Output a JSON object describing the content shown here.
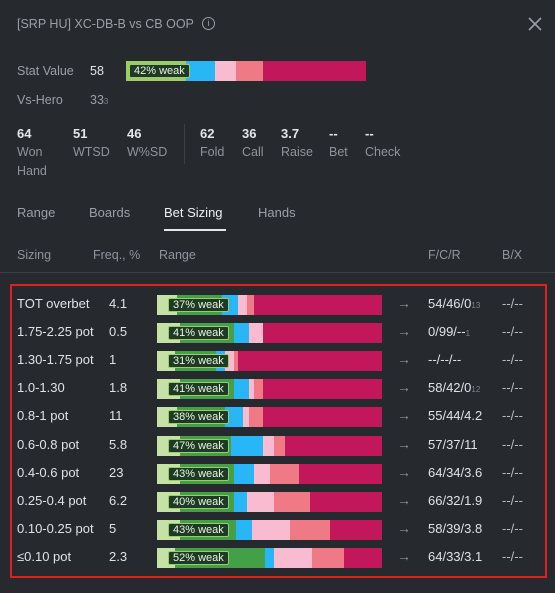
{
  "header": {
    "title": "[SRP HU] XC-DB-B vs CB OOP",
    "info_icon": "info-icon",
    "close_icon": "close-icon"
  },
  "stats": {
    "stat_value_label": "Stat Value",
    "stat_value": "58",
    "stat_weak_label": "42% weak",
    "vs_hero_label": "Vs-Hero",
    "vs_hero_value": "33",
    "vs_hero_sub": "3",
    "stat_bar_segments": [
      {
        "fraction": 0.25,
        "color": "#9ccc65"
      },
      {
        "fraction": 0.12,
        "color": "#29b6f6"
      },
      {
        "fraction": 0.09,
        "color": "#f8bbd0"
      },
      {
        "fraction": 0.11,
        "color": "#ef7a85"
      },
      {
        "fraction": 0.43,
        "color": "#c2185b"
      }
    ]
  },
  "metrics": [
    {
      "num": "64",
      "label": "Won",
      "label2": "Hand"
    },
    {
      "num": "51",
      "label": "WTSD",
      "label2": ""
    },
    {
      "num": "46",
      "label": "W%SD",
      "label2": ""
    },
    {
      "num": "62",
      "label": "Fold",
      "label2": ""
    },
    {
      "num": "36",
      "label": "Call",
      "label2": ""
    },
    {
      "num": "3.7",
      "label": "Raise",
      "label2": ""
    },
    {
      "num": "--",
      "label": "Bet",
      "label2": ""
    },
    {
      "num": "--",
      "label": "Check",
      "label2": ""
    }
  ],
  "tabs": [
    "Range",
    "Boards",
    "Bet Sizing",
    "Hands"
  ],
  "active_tab": "Bet Sizing",
  "columns": {
    "sizing": "Sizing",
    "freq": "Freq., %",
    "range": "Range",
    "fcr": "F/C/R",
    "bx": "B/X"
  },
  "colors": {
    "very_weak": "#c5e1a5",
    "weak": "#43a047",
    "medium": "#29b6f6",
    "light_pink": "#f8bbd0",
    "salmon": "#ef7a85",
    "strong": "#c2185b",
    "highlight_border": "#e02020"
  },
  "arrow_glyph": "→",
  "rows": [
    {
      "sizing": "TOT overbet",
      "freq": "4.1",
      "weak": "37% weak",
      "fcr": "54/46/0",
      "fcr_sub": "13",
      "bx": "--/--",
      "segments": [
        [
          0.09,
          "#c5e1a5"
        ],
        [
          0.2,
          "#43a047"
        ],
        [
          0.07,
          "#29b6f6"
        ],
        [
          0.04,
          "#f8bbd0"
        ],
        [
          0.03,
          "#ef7a85"
        ],
        [
          0.57,
          "#c2185b"
        ]
      ]
    },
    {
      "sizing": "1.75-2.25 pot",
      "freq": "0.5",
      "weak": "41% weak",
      "fcr": "0/99/--",
      "fcr_sub": "1",
      "bx": "--/--",
      "segments": [
        [
          0.1,
          "#c5e1a5"
        ],
        [
          0.24,
          "#43a047"
        ],
        [
          0.07,
          "#29b6f6"
        ],
        [
          0.06,
          "#f8bbd0"
        ],
        [
          0.0,
          "#ef7a85"
        ],
        [
          0.53,
          "#c2185b"
        ]
      ]
    },
    {
      "sizing": "1.30-1.75 pot",
      "freq": "1",
      "weak": "31% weak",
      "fcr": "--/--/--",
      "fcr_sub": "",
      "bx": "--/--",
      "segments": [
        [
          0.08,
          "#c5e1a5"
        ],
        [
          0.18,
          "#43a047"
        ],
        [
          0.04,
          "#29b6f6"
        ],
        [
          0.04,
          "#f8bbd0"
        ],
        [
          0.02,
          "#ef7a85"
        ],
        [
          0.64,
          "#c2185b"
        ]
      ]
    },
    {
      "sizing": "1.0-1.30",
      "freq": "1.8",
      "weak": "41% weak",
      "fcr": "58/42/0",
      "fcr_sub": "12",
      "bx": "--/--",
      "segments": [
        [
          0.1,
          "#c5e1a5"
        ],
        [
          0.24,
          "#43a047"
        ],
        [
          0.07,
          "#29b6f6"
        ],
        [
          0.02,
          "#f8bbd0"
        ],
        [
          0.04,
          "#ef7a85"
        ],
        [
          0.53,
          "#c2185b"
        ]
      ]
    },
    {
      "sizing": "0.8-1 pot",
      "freq": "11",
      "weak": "38% weak",
      "fcr": "55/44/4.2",
      "fcr_sub": "",
      "bx": "--/--",
      "segments": [
        [
          0.09,
          "#c5e1a5"
        ],
        [
          0.21,
          "#43a047"
        ],
        [
          0.08,
          "#29b6f6"
        ],
        [
          0.03,
          "#f8bbd0"
        ],
        [
          0.06,
          "#ef7a85"
        ],
        [
          0.53,
          "#c2185b"
        ]
      ]
    },
    {
      "sizing": "0.6-0.8 pot",
      "freq": "5.8",
      "weak": "47% weak",
      "fcr": "57/37/11",
      "fcr_sub": "",
      "bx": "--/--",
      "segments": [
        [
          0.1,
          "#c5e1a5"
        ],
        [
          0.23,
          "#43a047"
        ],
        [
          0.14,
          "#29b6f6"
        ],
        [
          0.05,
          "#f8bbd0"
        ],
        [
          0.05,
          "#ef7a85"
        ],
        [
          0.43,
          "#c2185b"
        ]
      ]
    },
    {
      "sizing": "0.4-0.6 pot",
      "freq": "23",
      "weak": "43% weak",
      "fcr": "64/34/3.6",
      "fcr_sub": "",
      "bx": "--/--",
      "segments": [
        [
          0.1,
          "#c5e1a5"
        ],
        [
          0.24,
          "#43a047"
        ],
        [
          0.09,
          "#29b6f6"
        ],
        [
          0.07,
          "#f8bbd0"
        ],
        [
          0.13,
          "#ef7a85"
        ],
        [
          0.37,
          "#c2185b"
        ]
      ]
    },
    {
      "sizing": "0.25-0.4 pot",
      "freq": "6.2",
      "weak": "40% weak",
      "fcr": "66/32/1.9",
      "fcr_sub": "",
      "bx": "--/--",
      "segments": [
        [
          0.1,
          "#c5e1a5"
        ],
        [
          0.24,
          "#43a047"
        ],
        [
          0.06,
          "#29b6f6"
        ],
        [
          0.12,
          "#f8bbd0"
        ],
        [
          0.16,
          "#ef7a85"
        ],
        [
          0.32,
          "#c2185b"
        ]
      ]
    },
    {
      "sizing": "0.10-0.25 pot",
      "freq": "5",
      "weak": "43% weak",
      "fcr": "58/39/3.8",
      "fcr_sub": "",
      "bx": "--/--",
      "segments": [
        [
          0.1,
          "#c5e1a5"
        ],
        [
          0.25,
          "#43a047"
        ],
        [
          0.07,
          "#29b6f6"
        ],
        [
          0.17,
          "#f8bbd0"
        ],
        [
          0.18,
          "#ef7a85"
        ],
        [
          0.23,
          "#c2185b"
        ]
      ]
    },
    {
      "sizing": "≤0.10 pot",
      "freq": "2.3",
      "weak": "52% weak",
      "fcr": "64/33/3.1",
      "fcr_sub": "",
      "bx": "--/--",
      "segments": [
        [
          0.08,
          "#c5e1a5"
        ],
        [
          0.4,
          "#43a047"
        ],
        [
          0.04,
          "#29b6f6"
        ],
        [
          0.17,
          "#f8bbd0"
        ],
        [
          0.14,
          "#ef7a85"
        ],
        [
          0.17,
          "#c2185b"
        ]
      ]
    }
  ]
}
